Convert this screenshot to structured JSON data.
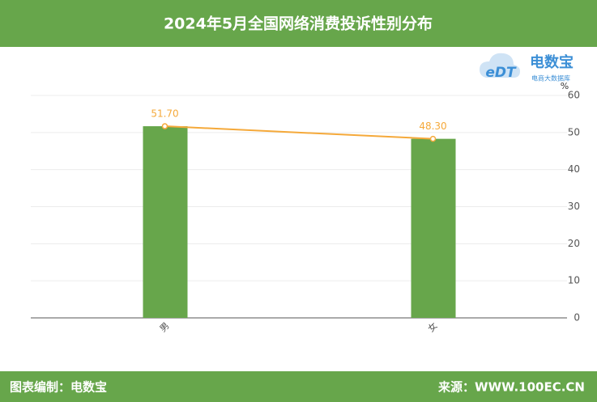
{
  "header": {
    "title": "2024年5月全国网络消费投诉性别分布"
  },
  "logo": {
    "mark": "eDT",
    "name": "电数宝",
    "tagline": "电商大数据库"
  },
  "chart_data": {
    "type": "combo",
    "y_label": "%",
    "categories": [
      "男",
      "女"
    ],
    "series": [
      {
        "kind": "bar",
        "color": "#67a64b",
        "values": [
          51.7,
          48.3
        ]
      },
      {
        "kind": "line",
        "color": "#f5a93a",
        "values": [
          51.7,
          48.3
        ],
        "value_labels": [
          "51.70",
          "48.30"
        ]
      }
    ],
    "ylim": [
      0,
      60
    ],
    "yticks": [
      0,
      10,
      20,
      30,
      40,
      50,
      60
    ],
    "grid": true
  },
  "footer": {
    "left": "图表编制：电数宝",
    "right": "来源：WWW.100EC.CN"
  }
}
